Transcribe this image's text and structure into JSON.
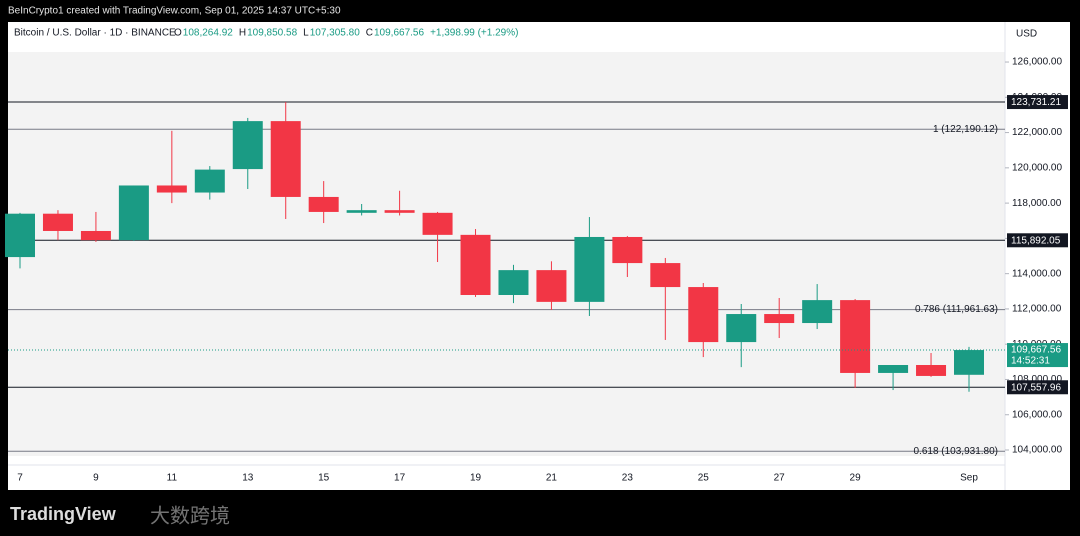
{
  "chart_data": {
    "type": "candlestick",
    "header": "BeInCrypto1 created with TradingView.com, Sep 01, 2025 14:37 UTC+5:30",
    "symbol": "Bitcoin / U.S. Dollar · 1D · BINANCE",
    "legend": [
      {
        "label": "O",
        "value": "108,264.92"
      },
      {
        "label": "H",
        "value": "109,850.58"
      },
      {
        "label": "L",
        "value": "107,305.80"
      },
      {
        "label": "C",
        "value": "109,667.56"
      }
    ],
    "change": "+1,398.99 (+1.29%)",
    "currency": "USD",
    "categories": [
      "7",
      null,
      "9",
      null,
      "11",
      null,
      "13",
      null,
      "15",
      null,
      "17",
      null,
      "19",
      null,
      "21",
      null,
      "23",
      null,
      "25",
      null,
      "27",
      null,
      "29",
      null,
      null,
      "Sep"
    ],
    "open": [
      114940,
      117400,
      116420,
      115900,
      119000,
      118600,
      119930,
      122650,
      118350,
      117450,
      117600,
      117450,
      116200,
      112790,
      114200,
      112400,
      116080,
      114600,
      113240,
      110120,
      111710,
      111200,
      112500,
      108370,
      108820,
      108264.92
    ],
    "high": [
      117450,
      117600,
      117500,
      119000,
      122100,
      120100,
      122830,
      123731.21,
      119250,
      117950,
      118700,
      117500,
      116530,
      114500,
      114700,
      117210,
      116130,
      114890,
      113470,
      112280,
      112620,
      113410,
      112560,
      108820,
      109500,
      109850.58
    ],
    "low": [
      114300,
      115900,
      115800,
      115850,
      118000,
      118200,
      118800,
      117100,
      116870,
      117300,
      117300,
      114660,
      112680,
      112330,
      111940,
      111600,
      113810,
      110240,
      109270,
      108700,
      110350,
      110860,
      107520,
      107400,
      108150,
      107305.8
    ],
    "close": [
      117400,
      116420,
      115900,
      119000,
      118600,
      119900,
      122650,
      118350,
      117500,
      117600,
      117450,
      116200,
      112790,
      114200,
      112400,
      116080,
      114600,
      113240,
      110120,
      111710,
      111200,
      112500,
      108370,
      108820,
      108200,
      109667.56
    ],
    "up_color": "#1a9b84",
    "down_color": "#f23645",
    "ylim": [
      103150,
      128270
    ],
    "yticks": [
      {
        "value": 104000,
        "label": "104,000.00"
      },
      {
        "value": 106000,
        "label": "106,000.00"
      },
      {
        "value": 108000,
        "label": "108,000.00"
      },
      {
        "value": 110000,
        "label": "110,000.00"
      },
      {
        "value": 112000,
        "label": "112,000.00"
      },
      {
        "value": 114000,
        "label": "114,000.00"
      },
      {
        "value": 116000,
        "label": "116,000.00"
      },
      {
        "value": 118000,
        "label": "118,000.00"
      },
      {
        "value": 120000,
        "label": "120,000.00"
      },
      {
        "value": 122000,
        "label": "122,000.00"
      },
      {
        "value": 124000,
        "label": "124,000.00"
      },
      {
        "value": 126000,
        "label": "126,000.00"
      }
    ],
    "levels": [
      {
        "value": 123731.21,
        "label": "123,731.21"
      },
      {
        "value": 115892.05,
        "label": "115,892.05"
      },
      {
        "value": 107557.96,
        "label": "107,557.96"
      }
    ],
    "fib_levels": [
      {
        "value": 122190.12,
        "label": "1 (122,190.12)"
      },
      {
        "value": 111961.63,
        "label": "0.786 (111,961.63)"
      },
      {
        "value": 103931.8,
        "label": "0.618 (103,931.80)"
      }
    ],
    "last_price": {
      "value": 109667.56,
      "label": "109,667.56",
      "countdown": "14:52:31"
    },
    "brand": "TradingView",
    "watermark": "大数跨境"
  }
}
